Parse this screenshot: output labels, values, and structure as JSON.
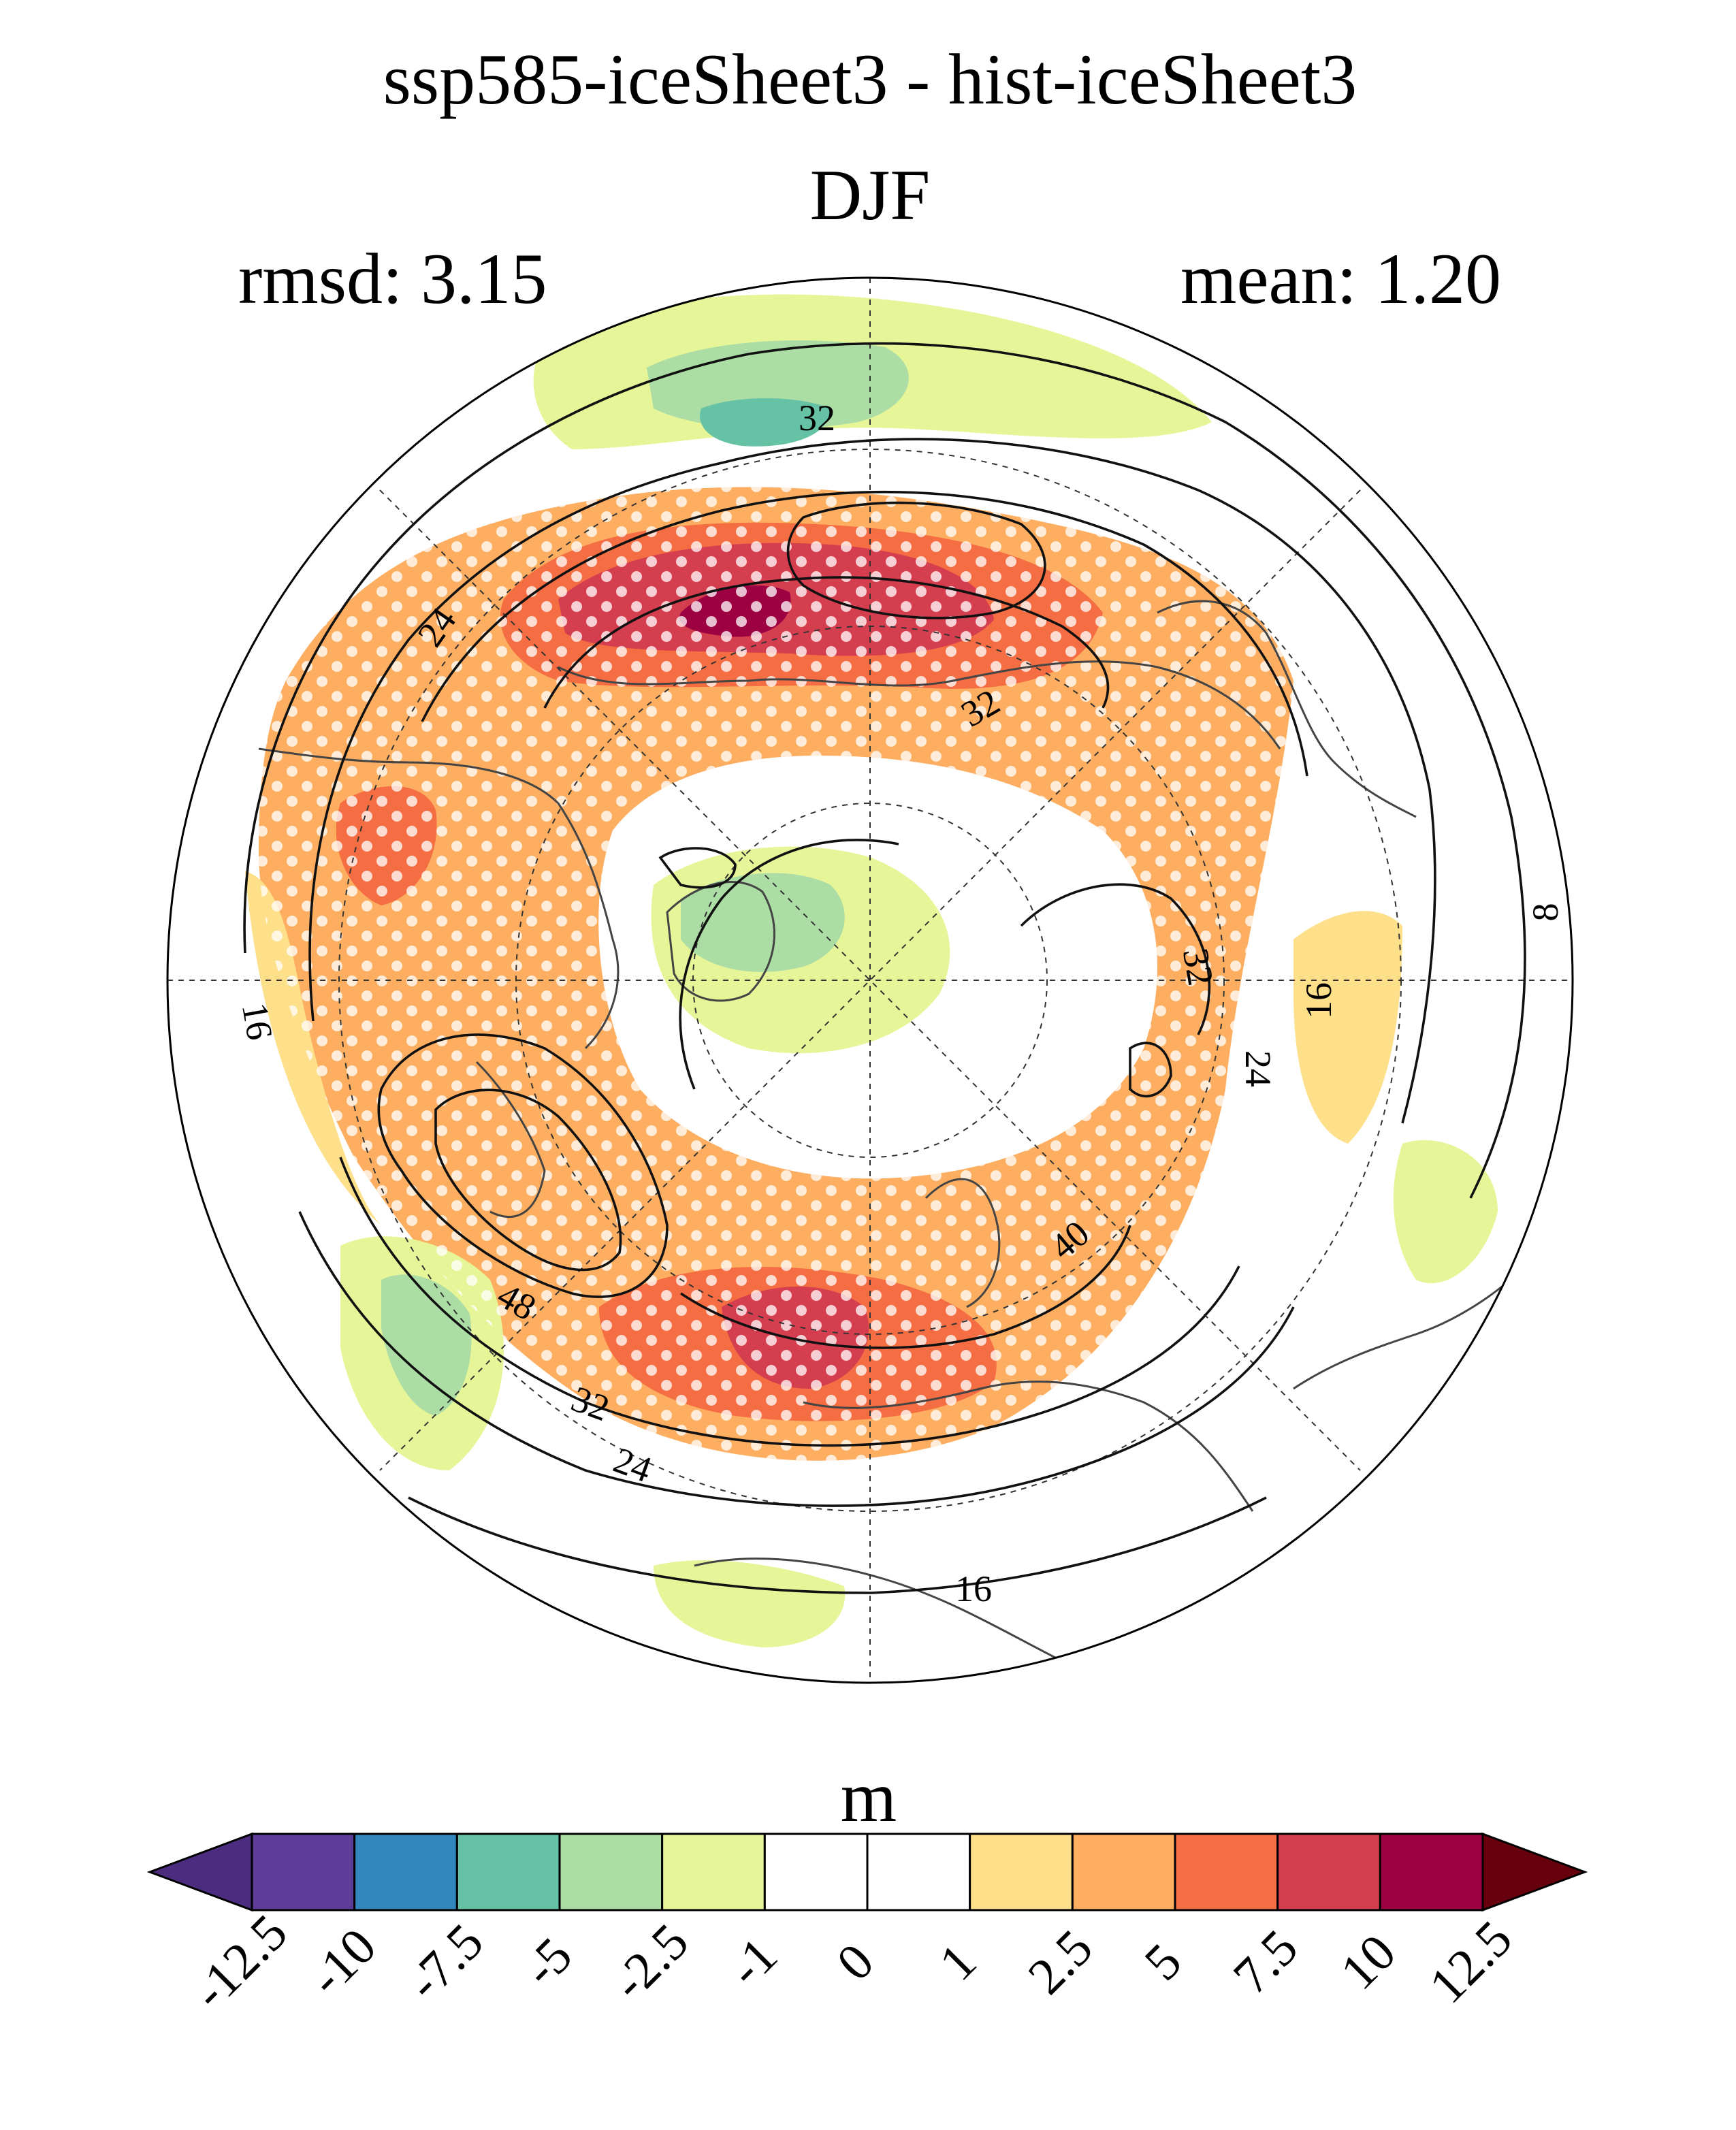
{
  "title": {
    "line1": "ssp585-iceSheet3 - hist-iceSheet3",
    "line2": "DJF",
    "rmsd": "rmsd: 3.15",
    "mean": "mean: 1.20"
  },
  "colorbar": {
    "unit": "m",
    "levels": [
      "-12.5",
      "-10",
      "-7.5",
      "-5",
      "-2.5",
      "-1",
      "0",
      "1",
      "2.5",
      "5",
      "7.5",
      "10",
      "12.5"
    ],
    "colors": [
      "#5e3c99",
      "#3288bd",
      "#66c2a5",
      "#abdda4",
      "#e6f598",
      "#ffffff",
      "#ffffff",
      "#fee08b",
      "#fdae61",
      "#f46d43",
      "#d53e4f",
      "#9e0142"
    ],
    "under_color": "#4b2c7f",
    "over_color": "#67000d"
  },
  "contour_labels": [
    "32",
    "32",
    "24",
    "16",
    "8",
    "32",
    "16",
    "24",
    "40",
    "48",
    "32",
    "24",
    "16"
  ]
}
